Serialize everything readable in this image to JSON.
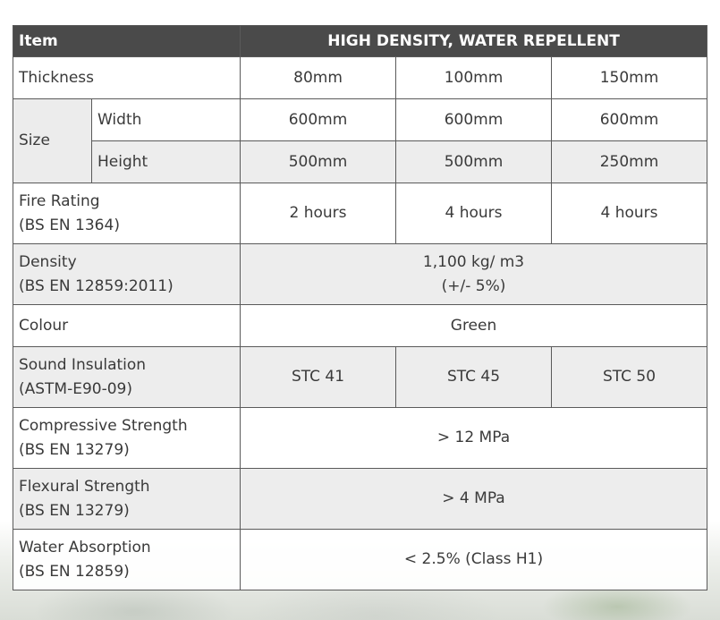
{
  "header": {
    "item": "Item",
    "spec": "HIGH DENSITY, WATER REPELLENT"
  },
  "rows": {
    "thickness": {
      "label": "Thickness",
      "values": [
        "80mm",
        "100mm",
        "150mm"
      ]
    },
    "size": {
      "label": "Size",
      "width": {
        "label": "Width",
        "values": [
          "600mm",
          "600mm",
          "600mm"
        ]
      },
      "height": {
        "label": "Height",
        "values": [
          "500mm",
          "500mm",
          "250mm"
        ]
      }
    },
    "fire_rating": {
      "label": "Fire Rating",
      "standard": "(BS EN 1364)",
      "values": [
        "2 hours",
        "4 hours",
        "4 hours"
      ]
    },
    "density": {
      "label": "Density",
      "standard": "(BS EN 12859:2011)",
      "value": "1,100 kg/ m3",
      "tolerance": "(+/- 5%)"
    },
    "colour": {
      "label": "Colour",
      "value": "Green"
    },
    "sound_insulation": {
      "label": "Sound Insulation",
      "standard": "(ASTM-E90-09)",
      "values": [
        "STC 41",
        "STC 45",
        "STC 50"
      ]
    },
    "compressive_strength": {
      "label": "Compressive Strength",
      "standard": "(BS EN 13279)",
      "value": "> 12 MPa"
    },
    "flexural_strength": {
      "label": "Flexural Strength",
      "standard": "(BS EN 13279)",
      "value": "> 4 MPa"
    },
    "water_absorption": {
      "label": "Water Absorption",
      "standard": "(BS EN 12859)",
      "value": "< 2.5% (Class H1)"
    }
  }
}
